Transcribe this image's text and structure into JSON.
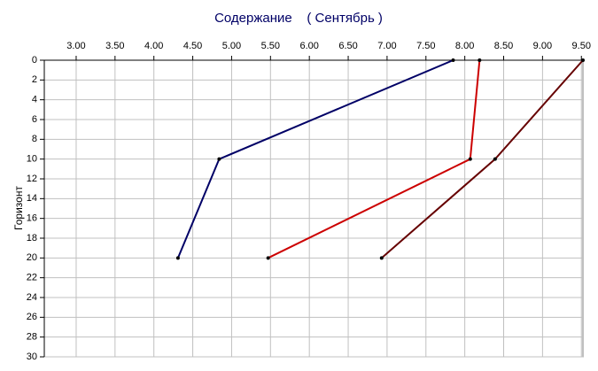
{
  "chart_data": {
    "type": "line",
    "title": "Содержание    ( Сентябрь )",
    "y_label": "Горизонт",
    "y": [
      0,
      10,
      20
    ],
    "series": [
      {
        "color": "#000066",
        "values": [
          7.85,
          4.84,
          4.31
        ]
      },
      {
        "color": "#cc0000",
        "values": [
          8.19,
          8.07,
          5.47
        ]
      },
      {
        "color": "#660000",
        "values": [
          9.52,
          8.39,
          6.93
        ]
      }
    ],
    "xlim": [
      2.59,
      9.52
    ],
    "xticks": [
      {
        "value": 3,
        "label": "3.00"
      },
      {
        "value": 3.5,
        "label": "3.50"
      },
      {
        "value": 4,
        "label": "4.00"
      },
      {
        "value": 4.5,
        "label": "4.50"
      },
      {
        "value": 5,
        "label": "5.00"
      },
      {
        "value": 5.5,
        "label": "5.50"
      },
      {
        "value": 6,
        "label": "6.00"
      },
      {
        "value": 6.5,
        "label": "6.50"
      },
      {
        "value": 7,
        "label": "7.00"
      },
      {
        "value": 7.5,
        "label": "7.50"
      },
      {
        "value": 8,
        "label": "8.00"
      },
      {
        "value": 8.5,
        "label": "8.50"
      },
      {
        "value": 9,
        "label": "9.00"
      },
      {
        "value": 9.5,
        "label": "9.50"
      }
    ],
    "ylim": [
      0,
      30
    ],
    "yticks": [
      0,
      2,
      4,
      6,
      8,
      10,
      12,
      14,
      16,
      18,
      20,
      22,
      24,
      26,
      28,
      30
    ],
    "y_inverted": true,
    "x_axis_position": "top",
    "grid": true
  }
}
